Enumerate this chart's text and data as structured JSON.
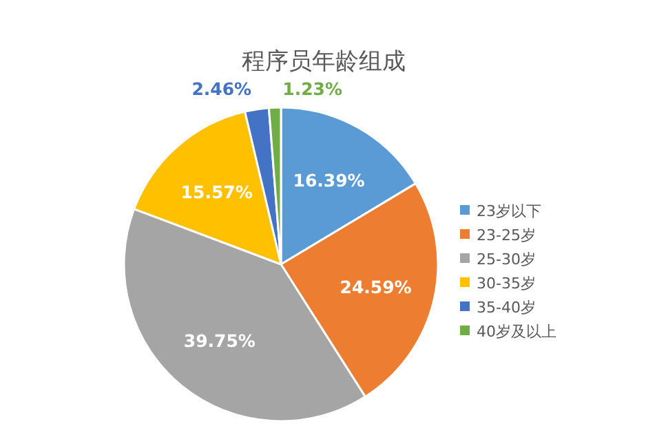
{
  "chart_data": {
    "type": "pie",
    "title": "程序员年龄组成",
    "categories": [
      "23岁以下",
      "23-25岁",
      "25-30岁",
      "30-35岁",
      "35-40岁",
      "40岁及以上"
    ],
    "values": [
      16.39,
      24.59,
      39.75,
      15.57,
      2.46,
      1.23
    ],
    "value_labels": [
      "16.39%",
      "24.59%",
      "39.75%",
      "15.57%",
      "2.46%",
      "1.23%"
    ],
    "colors": [
      "#5b9bd5",
      "#ed7d31",
      "#a5a5a5",
      "#ffc000",
      "#4472c4",
      "#70ad47"
    ],
    "legend": "right"
  }
}
